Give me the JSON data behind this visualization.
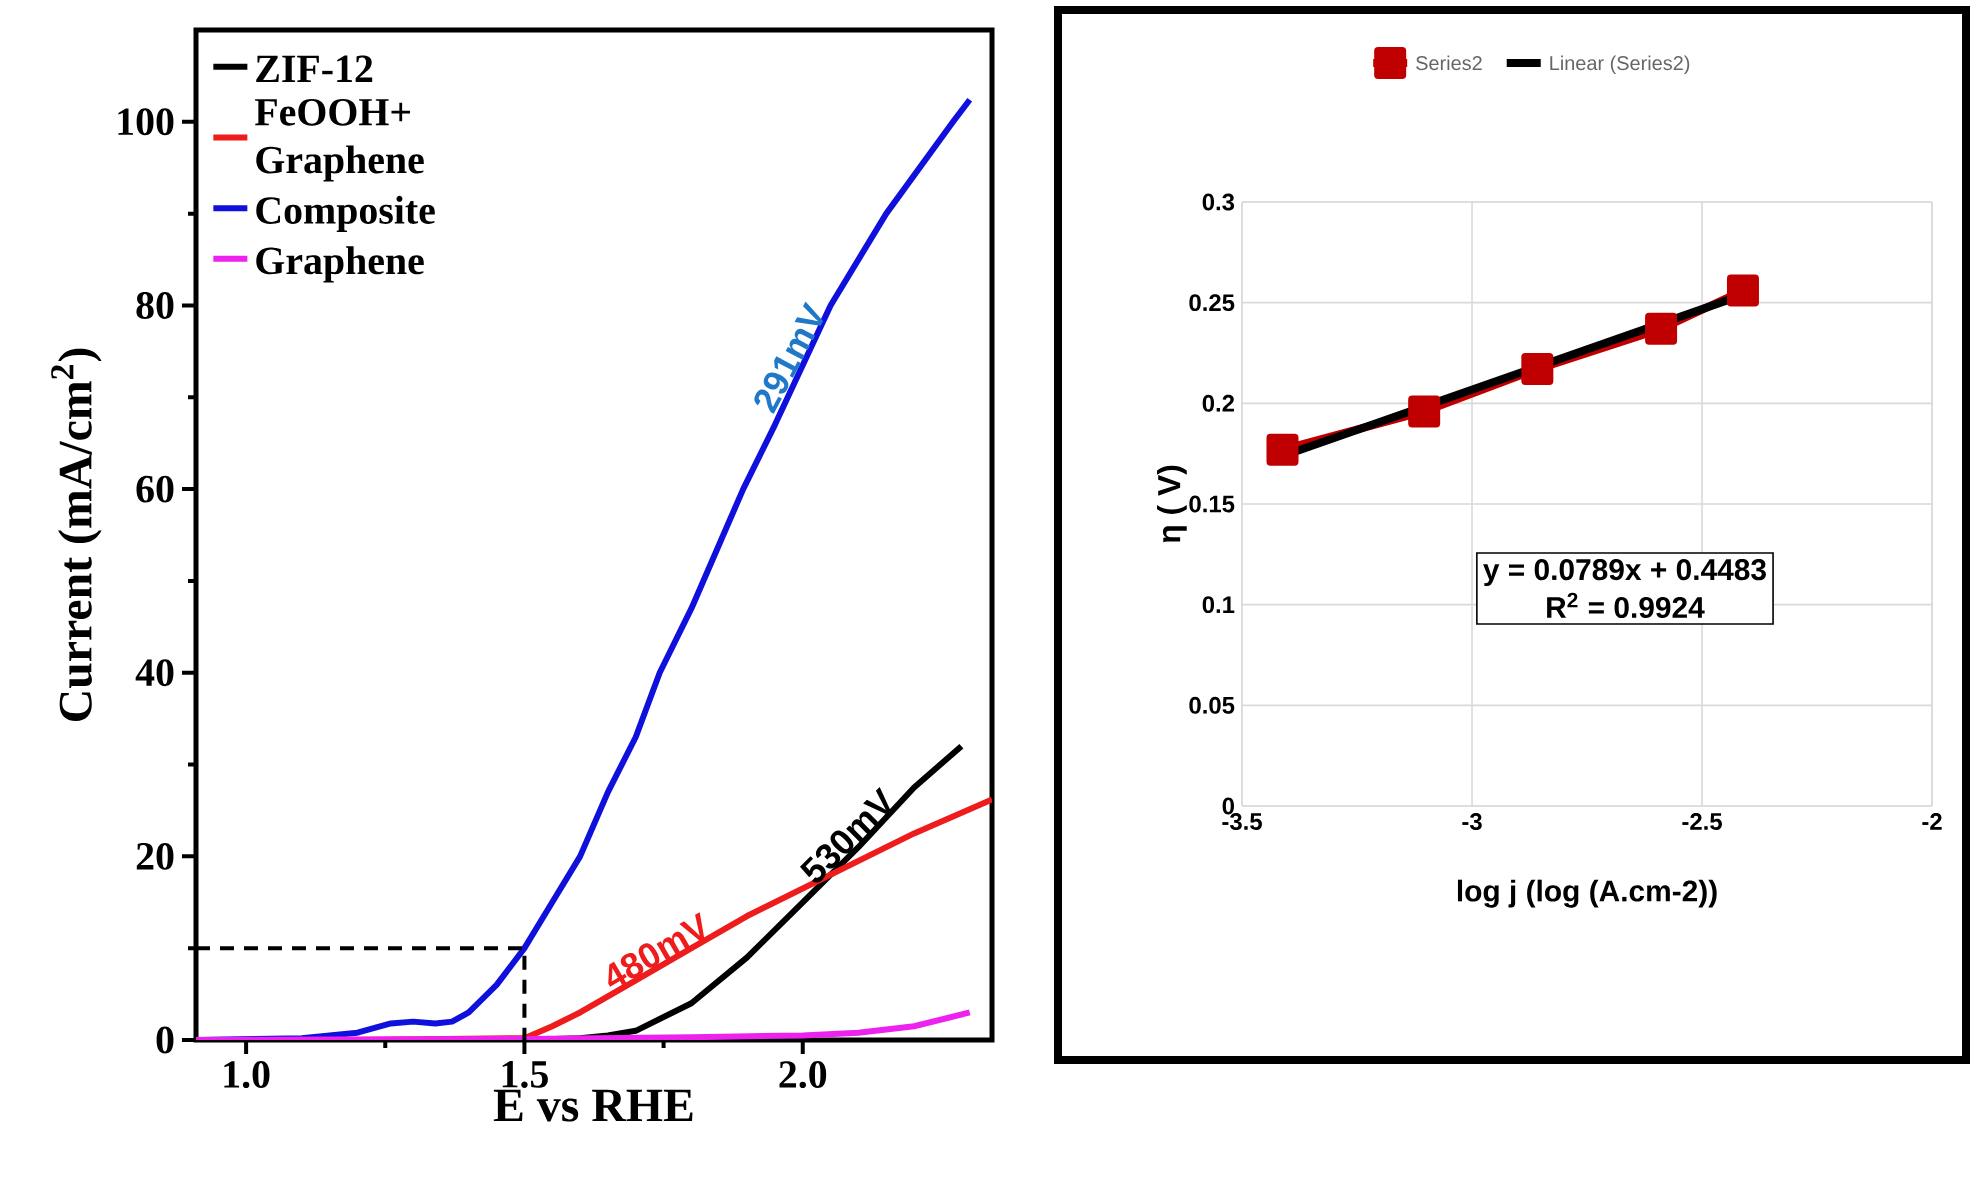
{
  "chart_data": [
    {
      "type": "line",
      "xlabel": "E vs RHE",
      "ylabel": "Current (mA/cm$^{2}$)",
      "xlim": [
        0.91,
        2.34
      ],
      "ylim": [
        0,
        110
      ],
      "xticks": [
        {
          "value": 1,
          "label": "1.0"
        },
        {
          "value": 1.5,
          "label": "1.5"
        },
        {
          "value": 2,
          "label": "2.0"
        }
      ],
      "yticks": [
        0,
        20,
        40,
        60,
        80,
        100
      ],
      "legend": "top left",
      "series": [
        {
          "name": "ZIF-12",
          "color": "#000000",
          "x": [
            0.91,
            1.2,
            1.5,
            1.6,
            1.65,
            1.7,
            1.8,
            1.9,
            2.0,
            2.1,
            2.2,
            2.285
          ],
          "values": [
            0,
            0,
            0,
            0.2,
            0.5,
            1,
            4,
            9,
            15,
            21,
            27.5,
            32
          ]
        },
        {
          "name": "FeOOH+ Graphene",
          "color": "#ee1c1c",
          "x": [
            0.91,
            1.2,
            1.5,
            1.55,
            1.6,
            1.7,
            1.8,
            1.9,
            2.0,
            2.1,
            2.2,
            2.34
          ],
          "values": [
            0,
            0,
            0.2,
            1.5,
            3,
            6.5,
            10,
            13.5,
            16.5,
            19.5,
            22.5,
            26.2
          ]
        },
        {
          "name": "Composite",
          "color": "#1010dd",
          "x": [
            0.91,
            1.1,
            1.2,
            1.26,
            1.3,
            1.34,
            1.37,
            1.4,
            1.45,
            1.5,
            1.55,
            1.6,
            1.65,
            1.7,
            1.743,
            1.8,
            1.893,
            1.95,
            2.05,
            2.15,
            2.27,
            2.3
          ],
          "values": [
            0,
            0.2,
            0.8,
            1.8,
            2,
            1.8,
            2,
            3,
            6,
            10,
            15,
            20,
            27,
            33,
            40,
            47,
            60,
            67,
            80,
            90,
            100,
            102.4
          ]
        },
        {
          "name": "Graphene",
          "color": "#ee22ee",
          "x": [
            0.91,
            1.5,
            1.8,
            2.0,
            2.1,
            2.2,
            2.3
          ],
          "values": [
            0,
            0.1,
            0.3,
            0.5,
            0.8,
            1.5,
            3
          ]
        },
        {
          "color": "#000000",
          "line_style": "dashed",
          "x": [
            0.91,
            1.5,
            1.5
          ],
          "values": [
            10,
            10,
            0
          ]
        }
      ],
      "annotations": [
        {
          "text": "291mV",
          "x": 2.0,
          "y": 73.5
        },
        {
          "text": "530mV",
          "x": 2.1,
          "y": 21
        },
        {
          "text": "480mV",
          "x": 1.75,
          "y": 8.2
        }
      ]
    },
    {
      "type": "line",
      "xlabel": "log j (log (A.cm-2))",
      "ylabel": "η ( V)",
      "xlim": [
        -3.5,
        -2
      ],
      "ylim": [
        0,
        0.3
      ],
      "xticks": [
        -3.5,
        -3,
        -2.5,
        -2
      ],
      "yticks": [
        0,
        0.05,
        0.1,
        0.15,
        0.2,
        0.25,
        0.3
      ],
      "grid": true,
      "legend": "top",
      "series": [
        {
          "name": "Series2",
          "color": "#c00000",
          "marker": "square",
          "x": [
            -3.412,
            -3.104,
            -2.858,
            -2.589,
            -2.411
          ],
          "values": [
            0.177,
            0.196,
            0.217,
            0.237,
            0.256
          ]
        },
        {
          "name": "Linear (Series2)",
          "color": "#000000",
          "x": [
            -3.41,
            -2.41
          ],
          "values": [
            0.174,
            0.254
          ]
        }
      ],
      "annotations": [
        "y = 0.0789x + 0.4483",
        "R$^{2}$ = 0.9924"
      ]
    }
  ]
}
